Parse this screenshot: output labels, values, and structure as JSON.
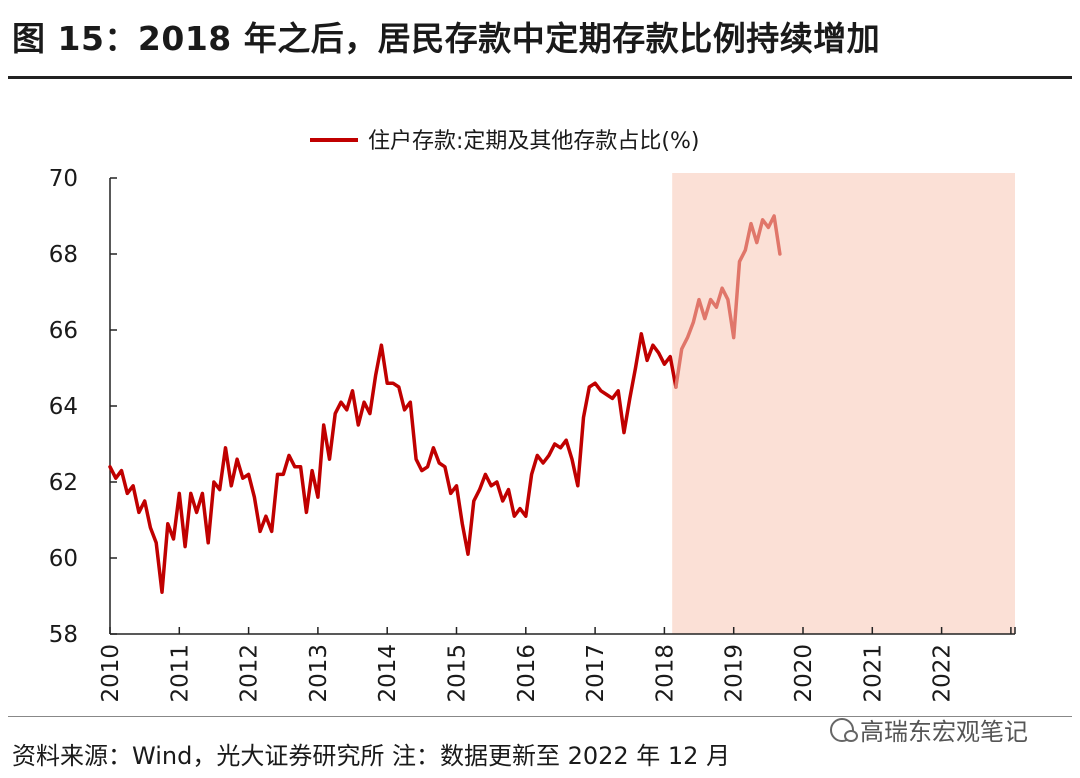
{
  "figure": {
    "title": "图 15：2018 年之后，居民存款中定期存款比例持续增加",
    "source": "资料来源：Wind，光大证券研究所 注：数据更新至 2022 年 12 月",
    "watermark": "高瑞东宏观笔记"
  },
  "chart_data": {
    "type": "line",
    "title": "",
    "xlabel": "",
    "ylabel": "",
    "ylim": [
      58,
      70
    ],
    "y_ticks": [
      "58",
      "60",
      "62",
      "64",
      "66",
      "68",
      "70"
    ],
    "x_ticks": [
      "2010",
      "2011",
      "2012",
      "2013",
      "2014",
      "2015",
      "2016",
      "2017",
      "2018",
      "2019",
      "2020",
      "2021",
      "2022"
    ],
    "grid": false,
    "legend": "top-center",
    "highlight_region": {
      "from": "2018-02",
      "to": "2022-12",
      "color": "#fbe0d6"
    },
    "series": [
      {
        "name": "住户存款:定期及其他存款占比(%)",
        "color": "#c00000",
        "color_after_highlight": "#e0766a",
        "x_start": "2010-01",
        "frequency": "monthly",
        "values": [
          62.4,
          62.1,
          62.3,
          61.7,
          61.9,
          61.2,
          61.5,
          60.8,
          60.4,
          59.1,
          60.9,
          60.5,
          61.7,
          60.3,
          61.7,
          61.2,
          61.7,
          60.4,
          62.0,
          61.8,
          62.9,
          61.9,
          62.6,
          62.1,
          62.2,
          61.6,
          60.7,
          61.1,
          60.7,
          62.2,
          62.2,
          62.7,
          62.4,
          62.4,
          61.2,
          62.3,
          61.6,
          63.5,
          62.6,
          63.8,
          64.1,
          63.9,
          64.4,
          63.5,
          64.1,
          63.8,
          64.8,
          65.6,
          64.6,
          64.6,
          64.5,
          63.9,
          64.1,
          62.6,
          62.3,
          62.4,
          62.9,
          62.5,
          62.4,
          61.7,
          61.9,
          60.9,
          60.1,
          61.5,
          61.8,
          62.2,
          61.9,
          62.0,
          61.5,
          61.8,
          61.1,
          61.3,
          61.1,
          62.2,
          62.7,
          62.5,
          62.7,
          63.0,
          62.9,
          63.1,
          62.6,
          61.9,
          63.7,
          64.5,
          64.6,
          64.4,
          64.3,
          64.2,
          64.4,
          63.3,
          64.2,
          65.0,
          65.9,
          65.2,
          65.6,
          65.4,
          65.1,
          65.3,
          64.5,
          65.5,
          65.8,
          66.2,
          66.8,
          66.3,
          66.8,
          66.6,
          67.1,
          66.8,
          65.8,
          67.8,
          68.1,
          68.8,
          68.3,
          68.9,
          68.7,
          69.0,
          68.0
        ]
      }
    ]
  }
}
